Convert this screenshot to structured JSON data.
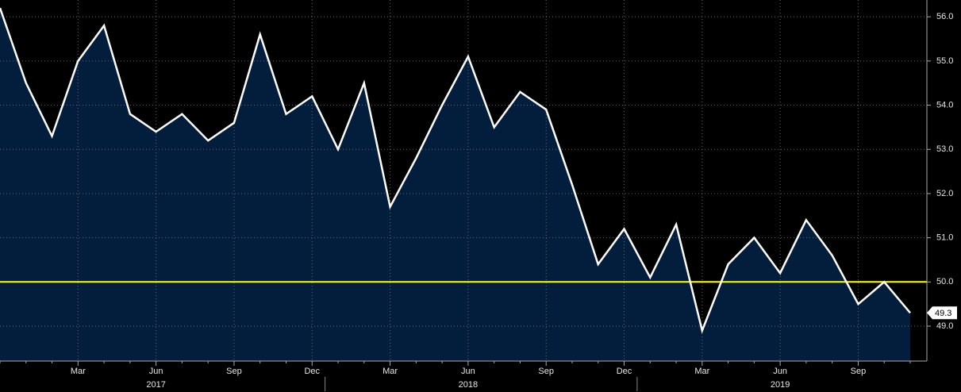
{
  "chart_data": {
    "type": "area",
    "categories": [
      null,
      null,
      null,
      "Mar",
      null,
      null,
      "Jun",
      null,
      null,
      "Sep",
      null,
      null,
      "Dec",
      null,
      null,
      "Mar",
      null,
      null,
      "Jun",
      null,
      null,
      "Sep",
      null,
      null,
      "Dec",
      null,
      null,
      "Mar",
      null,
      null,
      "Jun",
      null,
      null,
      "Sep",
      null,
      null
    ],
    "years": [
      "2017",
      "2018",
      "2019"
    ],
    "series": [
      {
        "color": "#ffffff",
        "fill": "#031d3d",
        "values": [
          56.2,
          54.5,
          53.3,
          55.0,
          55.8,
          53.8,
          53.4,
          53.8,
          53.2,
          53.6,
          55.6,
          53.8,
          54.2,
          53.0,
          54.5,
          51.7,
          52.8,
          54.0,
          55.1,
          53.5,
          54.3,
          53.9,
          52.2,
          50.4,
          51.2,
          50.1,
          51.3,
          48.9,
          50.4,
          51.0,
          50.2,
          51.4,
          50.6,
          49.5,
          50.0,
          49.3
        ]
      }
    ],
    "last_value_label": "49.3",
    "reference_line": {
      "value": 50,
      "color": "#ffff00"
    },
    "ylim": [
      48.21,
      56.38
    ],
    "yticks": [
      {
        "value": 49,
        "label": "49.0"
      },
      {
        "value": 50,
        "label": "50.0"
      },
      {
        "value": 51,
        "label": "51.0"
      },
      {
        "value": 52,
        "label": "52.0"
      },
      {
        "value": 53,
        "label": "53.0"
      },
      {
        "value": 54,
        "label": "54.0"
      },
      {
        "value": 55,
        "label": "55.0"
      },
      {
        "value": 56,
        "label": "56.0"
      }
    ],
    "grid": true
  }
}
